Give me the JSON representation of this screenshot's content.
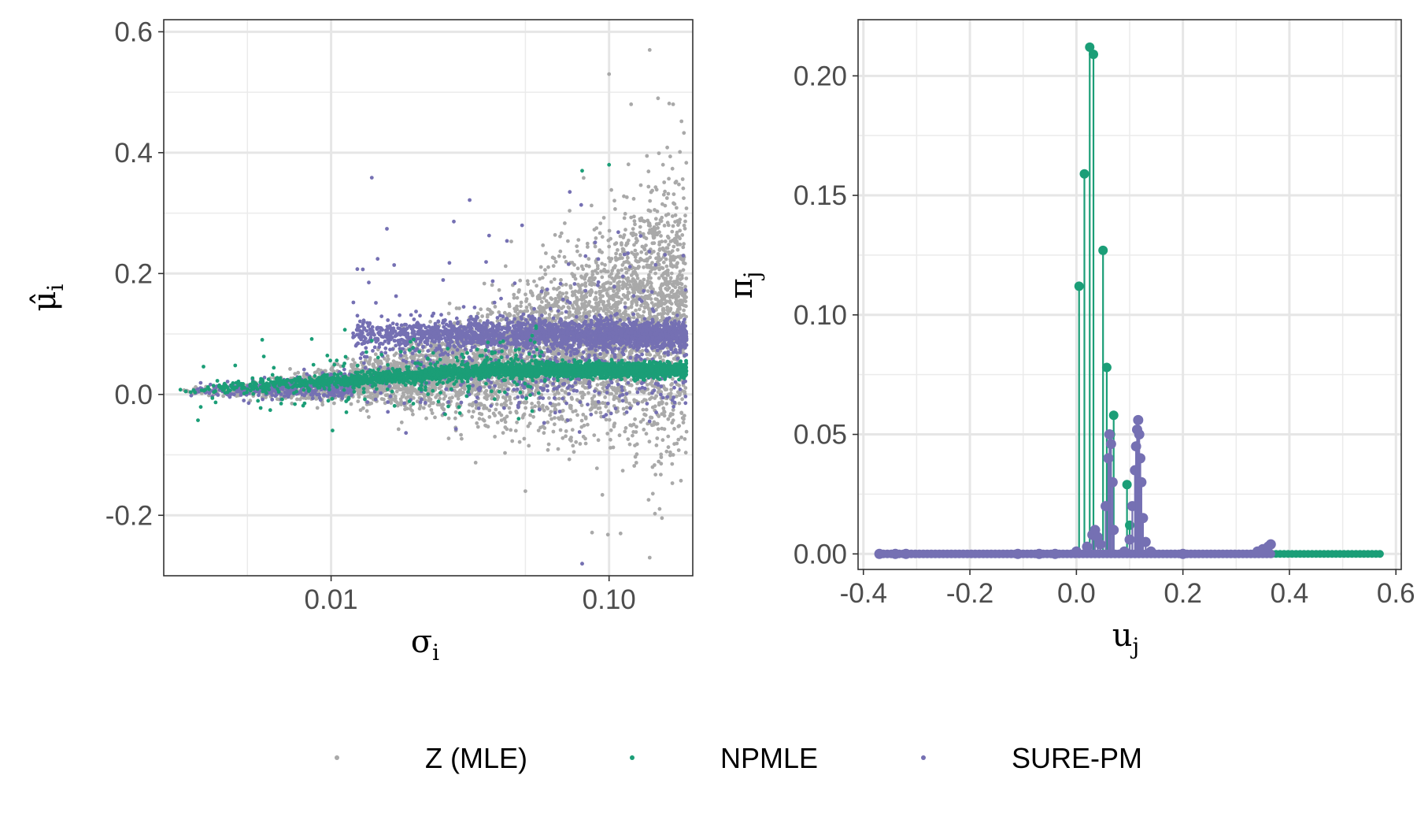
{
  "legend": {
    "items": [
      {
        "label": "Z (MLE)",
        "color": "#a9a9a9"
      },
      {
        "label": "NPMLE",
        "color": "#1b9e77"
      },
      {
        "label": "SURE-PM",
        "color": "#7570b3"
      }
    ],
    "position": "bottom"
  },
  "chart_data": [
    {
      "type": "scatter",
      "xlabel": "σ",
      "xlabel_sub": "i",
      "ylabel": "μ̂",
      "ylabel_sub": "i",
      "x_scale": "log10",
      "xlim": [
        0.0025,
        0.2
      ],
      "ylim": [
        -0.3,
        0.62
      ],
      "x_ticks": [
        {
          "value": 0.01,
          "label": "0.01"
        },
        {
          "value": 0.1,
          "label": "0.10"
        }
      ],
      "y_ticks": [
        {
          "value": -0.2,
          "label": "-0.2"
        },
        {
          "value": 0.0,
          "label": "0.0"
        },
        {
          "value": 0.2,
          "label": "0.2"
        },
        {
          "value": 0.4,
          "label": "0.4"
        },
        {
          "value": 0.6,
          "label": "0.6"
        }
      ],
      "grid": true,
      "series": [
        {
          "name": "Z (MLE)",
          "color": "#a9a9a9",
          "n_points": 5000,
          "description_of_shape": "fan widening with sigma; mean rises from ~0 to ~0.15",
          "sample_points": [
            [
              0.003,
              0.005
            ],
            [
              0.005,
              0.008
            ],
            [
              0.01,
              0.02
            ],
            [
              0.02,
              0.03
            ],
            [
              0.03,
              0.02
            ],
            [
              0.05,
              0.05
            ],
            [
              0.08,
              0.15
            ],
            [
              0.1,
              0.53
            ],
            [
              0.12,
              0.48
            ],
            [
              0.14,
              0.57
            ],
            [
              0.15,
              0.49
            ],
            [
              0.17,
              0.48
            ],
            [
              0.08,
              -0.28
            ],
            [
              0.14,
              -0.27
            ],
            [
              0.11,
              -0.23
            ],
            [
              0.05,
              -0.16
            ],
            [
              0.17,
              -0.1
            ]
          ]
        },
        {
          "name": "NPMLE",
          "color": "#1b9e77",
          "n_points": 3000,
          "description_of_shape": "shrinks toward ~0.04 at large sigma",
          "sample_points": [
            [
              0.003,
              0.005
            ],
            [
              0.01,
              0.02
            ],
            [
              0.02,
              0.03
            ],
            [
              0.05,
              0.035
            ],
            [
              0.1,
              0.04
            ],
            [
              0.18,
              0.04
            ],
            [
              0.1,
              0.38
            ],
            [
              0.08,
              0.37
            ]
          ]
        },
        {
          "name": "SURE-PM",
          "color": "#7570b3",
          "n_points": 3000,
          "description_of_shape": "band at ~0.1 for sigma above 0.012",
          "sample_points": [
            [
              0.003,
              0.005
            ],
            [
              0.01,
              0.03
            ],
            [
              0.015,
              0.11
            ],
            [
              0.05,
              0.1
            ],
            [
              0.1,
              0.1
            ],
            [
              0.18,
              0.105
            ],
            [
              0.08,
              -0.28
            ]
          ]
        }
      ]
    },
    {
      "type": "stem",
      "xlabel": "u",
      "xlabel_sub": "j",
      "ylabel": "π",
      "ylabel_sub": "j",
      "xlim": [
        -0.41,
        0.61
      ],
      "ylim": [
        -0.0065,
        0.2235
      ],
      "x_ticks": [
        {
          "value": -0.4,
          "label": "-0.4"
        },
        {
          "value": -0.2,
          "label": "-0.2"
        },
        {
          "value": 0.0,
          "label": "0.0"
        },
        {
          "value": 0.2,
          "label": "0.2"
        },
        {
          "value": 0.4,
          "label": "0.4"
        },
        {
          "value": 0.6,
          "label": "0.6"
        }
      ],
      "y_ticks": [
        {
          "value": 0.0,
          "label": "0.00"
        },
        {
          "value": 0.05,
          "label": "0.05"
        },
        {
          "value": 0.1,
          "label": "0.10"
        },
        {
          "value": 0.15,
          "label": "0.15"
        },
        {
          "value": 0.2,
          "label": "0.20"
        }
      ],
      "grid": true,
      "series": [
        {
          "name": "NPMLE",
          "color": "#1b9e77",
          "support_range": [
            -0.3,
            0.57
          ],
          "baseline": 0.0,
          "x": [
            0.005,
            0.015,
            0.025,
            0.032,
            0.05,
            0.057,
            0.064,
            0.07,
            0.095,
            0.1
          ],
          "y": [
            0.112,
            0.159,
            0.212,
            0.209,
            0.127,
            0.078,
            0.05,
            0.058,
            0.029,
            0.012
          ]
        },
        {
          "name": "SURE-PM",
          "color": "#7570b3",
          "support_range": [
            -0.37,
            0.37
          ],
          "baseline": 0.0,
          "x": [
            -0.37,
            -0.34,
            -0.32,
            -0.11,
            -0.07,
            -0.04,
            0.0,
            0.02,
            0.03,
            0.035,
            0.04,
            0.045,
            0.055,
            0.06,
            0.062,
            0.065,
            0.068,
            0.07,
            0.09,
            0.1,
            0.105,
            0.11,
            0.112,
            0.114,
            0.116,
            0.118,
            0.12,
            0.122,
            0.125,
            0.13,
            0.14,
            0.2,
            0.34,
            0.35,
            0.36,
            0.365
          ],
          "y": [
            0.0,
            0.0,
            0.0,
            0.0,
            0.0,
            0.0,
            0.001,
            0.003,
            0.008,
            0.01,
            0.007,
            0.004,
            0.02,
            0.04,
            0.05,
            0.046,
            0.03,
            0.01,
            0.001,
            0.006,
            0.02,
            0.035,
            0.045,
            0.052,
            0.056,
            0.05,
            0.04,
            0.03,
            0.015,
            0.005,
            0.001,
            0.0,
            0.001,
            0.002,
            0.003,
            0.004
          ]
        }
      ]
    }
  ]
}
